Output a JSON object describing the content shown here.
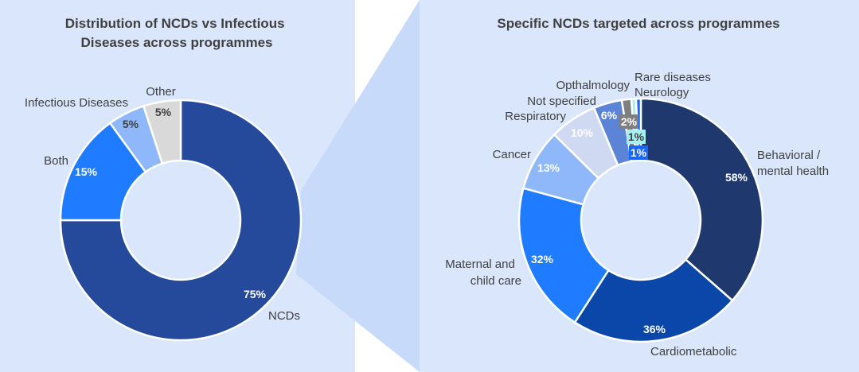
{
  "chart_data": [
    {
      "type": "donut",
      "title_lines": [
        "Distribution of NCDs vs Infectious",
        "Diseases across programmes"
      ],
      "slices": [
        {
          "label": "NCDs",
          "value": 75,
          "value_label": "75%",
          "color": "#254A9B",
          "text_color": "#ffffff"
        },
        {
          "label": "Both",
          "value": 15,
          "value_label": "15%",
          "color": "#1F7BFF",
          "text_color": "#ffffff"
        },
        {
          "label": "Infectious Diseases",
          "value": 5,
          "value_label": "5%",
          "color": "#8FB8FA",
          "text_color": "#404040"
        },
        {
          "label": "Other",
          "value": 5,
          "value_label": "5%",
          "color": "#D9D9D9",
          "text_color": "#404040"
        }
      ]
    },
    {
      "type": "donut",
      "title_lines": [
        "Specific NCDs targeted across programmes"
      ],
      "slices": [
        {
          "label_lines": [
            "Behavioral /",
            "mental health"
          ],
          "value": 58,
          "value_label": "58%",
          "color": "#1F386E",
          "text_color": "#ffffff"
        },
        {
          "label_lines": [
            "Cardiometabolic"
          ],
          "value": 36,
          "value_label": "36%",
          "color": "#0A47A8",
          "text_color": "#ffffff"
        },
        {
          "label_lines": [
            "Maternal and",
            "child care"
          ],
          "value": 32,
          "value_label": "32%",
          "color": "#1F7BFF",
          "text_color": "#ffffff"
        },
        {
          "label_lines": [
            "Cancer"
          ],
          "value": 13,
          "value_label": "13%",
          "color": "#8FB8FA",
          "text_color": "#ffffff"
        },
        {
          "label_lines": [
            "Respiratory"
          ],
          "value": 10,
          "value_label": "10%",
          "color": "#CFDAF2",
          "text_color": "#ffffff"
        },
        {
          "label_lines": [
            "Not specified"
          ],
          "value": 6,
          "value_label": "6%",
          "color": "#5C84D6",
          "text_color": "#ffffff"
        },
        {
          "label_lines": [
            "Opthalmology"
          ],
          "value": 2,
          "value_label": "2%",
          "color": "#7F7F7F",
          "text_color": "#ffffff"
        },
        {
          "label_lines": [
            "Rare diseases"
          ],
          "value": 1,
          "value_label": "1%",
          "color": "#A6F0F2",
          "text_color": "#404040"
        },
        {
          "label_lines": [
            "Neurology"
          ],
          "value": 1,
          "value_label": "1%",
          "color": "#1966FF",
          "text_color": "#ffffff"
        }
      ]
    }
  ],
  "colors": {
    "panel_background": "#DAE6FB",
    "zoom_connector": "#C8DAFA",
    "text": "#404040"
  }
}
